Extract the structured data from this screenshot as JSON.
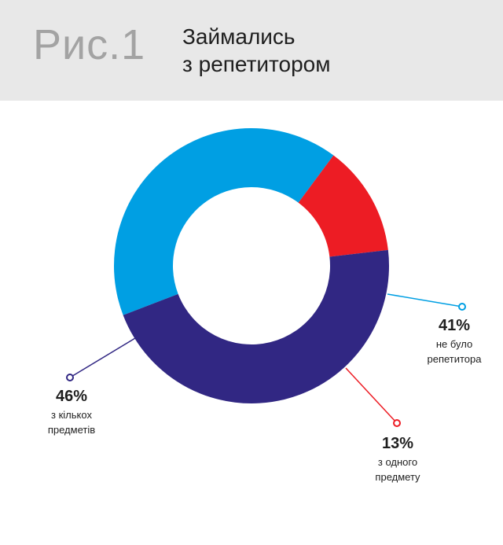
{
  "header": {
    "figure_label": "Рис.1",
    "title_line1": "Займались",
    "title_line2": "з репетитором",
    "background_color": "#e8e8e8"
  },
  "chart_data": {
    "type": "pie",
    "donut": true,
    "title": "Займались з репетитором",
    "slices": [
      {
        "value": 41,
        "percent_label": "41%",
        "label_lines": [
          "не було",
          "репетитора"
        ],
        "color": "#009fe3"
      },
      {
        "value": 13,
        "percent_label": "13%",
        "label_lines": [
          "з одного",
          "предмету"
        ],
        "color": "#ed1c24"
      },
      {
        "value": 46,
        "percent_label": "46%",
        "label_lines": [
          "з кількох",
          "предметів"
        ],
        "color": "#312783"
      }
    ]
  }
}
